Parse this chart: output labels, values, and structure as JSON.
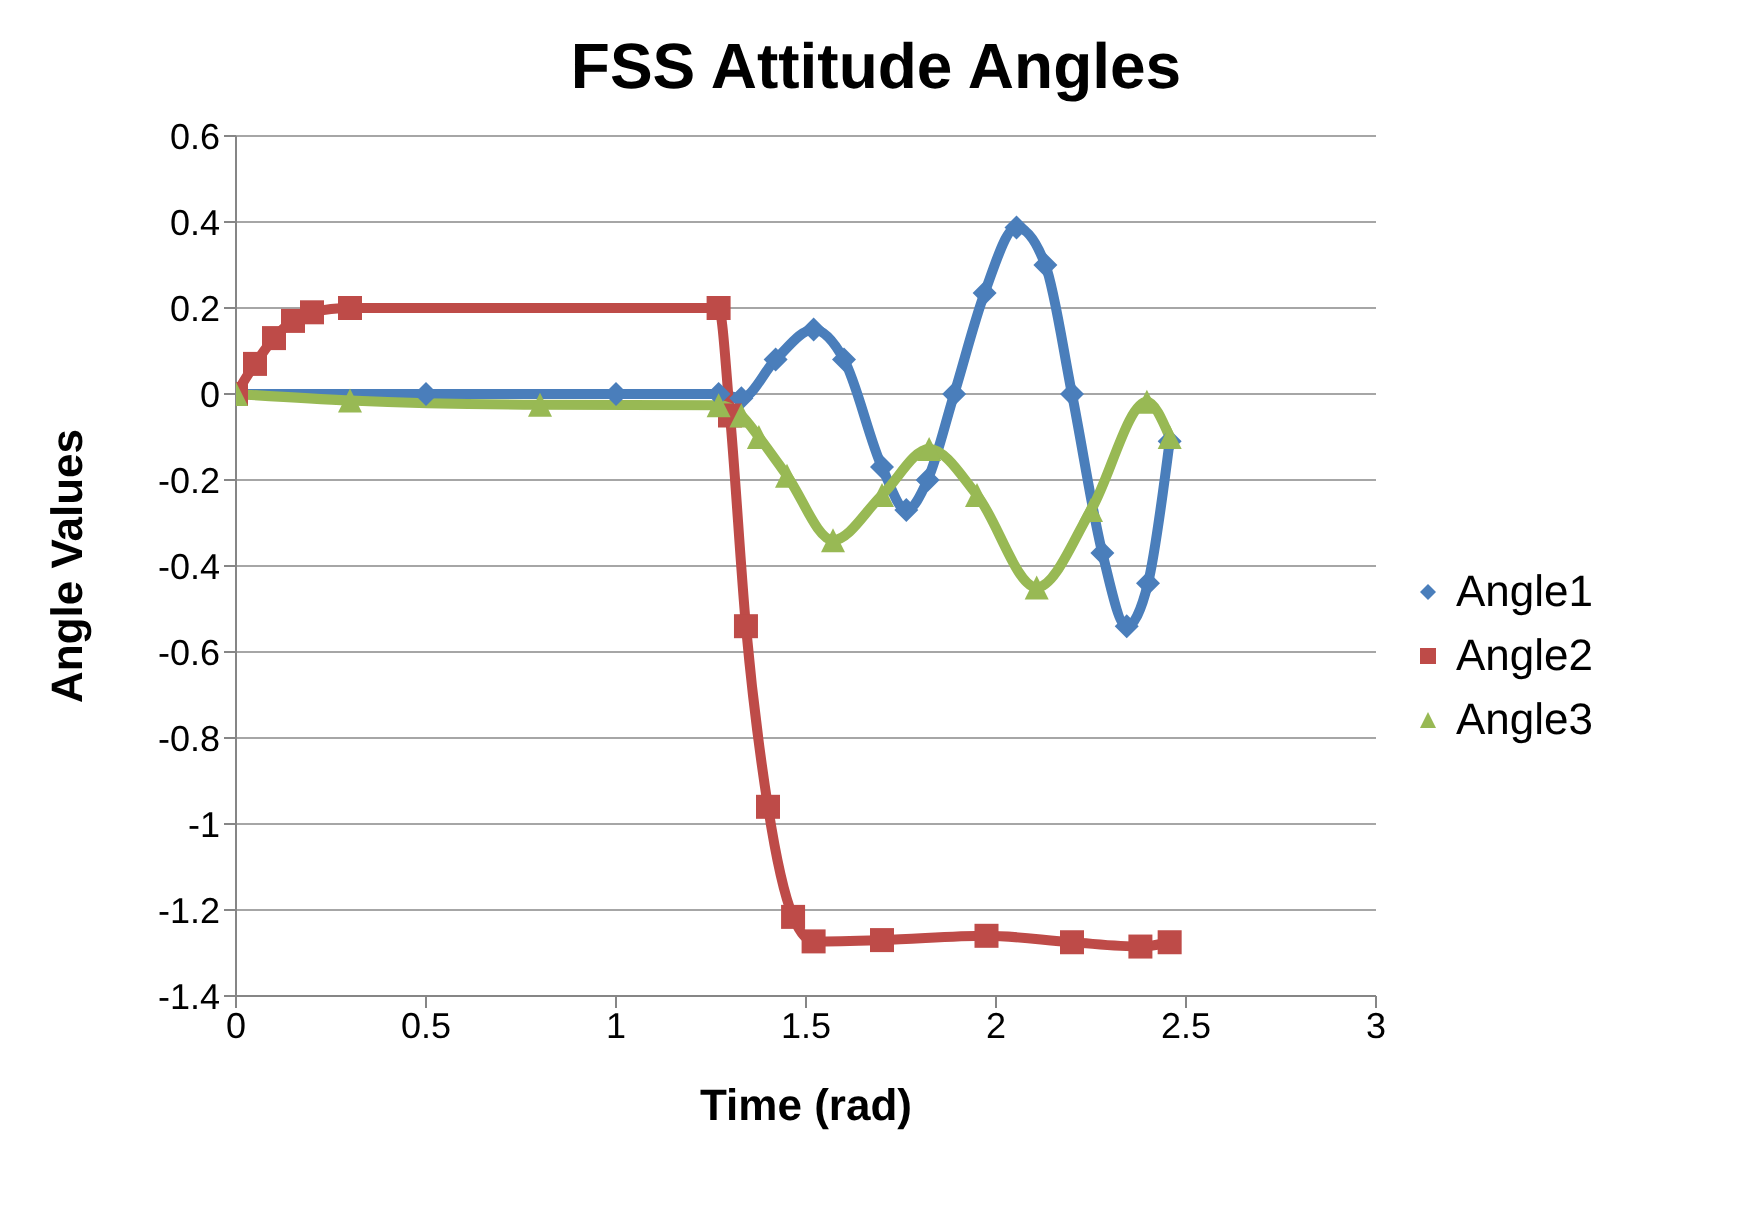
{
  "chart_data": {
    "type": "line",
    "title": "FSS Attitude Angles",
    "xlabel": "Time (rad)",
    "ylabel": "Angle Values",
    "xlim": [
      0,
      3
    ],
    "xticks": [
      0,
      0.5,
      1,
      1.5,
      2,
      2.5,
      3
    ],
    "ylim": [
      -1.4,
      0.6
    ],
    "yticks": [
      -1.4,
      -1.2,
      -1,
      -0.8,
      -0.6,
      -0.4,
      -0.2,
      0,
      0.2,
      0.4,
      0.6
    ],
    "grid": "y",
    "legend": "right",
    "series": [
      {
        "name": "Angle1",
        "color": "#4a7ebb",
        "marker": "diamond",
        "x": [
          0,
          0.5,
          1,
          1.27,
          1.33,
          1.42,
          1.52,
          1.6,
          1.7,
          1.764,
          1.82,
          1.89,
          1.97,
          2.054,
          2.13,
          2.2,
          2.28,
          2.344,
          2.4,
          2.457
        ],
        "values": [
          0,
          0,
          0,
          0,
          -0.01,
          0.08,
          0.15,
          0.08,
          -0.17,
          -0.27,
          -0.2,
          0,
          0.235,
          0.387,
          0.3,
          0,
          -0.37,
          -0.54,
          -0.44,
          -0.11
        ]
      },
      {
        "name": "Angle2",
        "color": "#be4b48",
        "marker": "square",
        "x": [
          0,
          0.05,
          0.1,
          0.15,
          0.2,
          0.3,
          1.27,
          1.3,
          1.342,
          1.4,
          1.466,
          1.52,
          1.7,
          1.975,
          2.2,
          2.38,
          2.457
        ],
        "values": [
          0,
          0.07,
          0.13,
          0.17,
          0.19,
          0.2,
          0.2,
          -0.05,
          -0.54,
          -0.96,
          -1.216,
          -1.273,
          -1.27,
          -1.26,
          -1.275,
          -1.285,
          -1.275
        ]
      },
      {
        "name": "Angle3",
        "color": "#98b954",
        "marker": "triangle",
        "x": [
          0,
          0.3,
          0.8,
          1.27,
          1.33,
          1.376,
          1.45,
          1.571,
          1.7,
          1.824,
          1.95,
          2.107,
          2.25,
          2.397,
          2.457
        ],
        "values": [
          0,
          -0.015,
          -0.025,
          -0.026,
          -0.05,
          -0.1,
          -0.19,
          -0.34,
          -0.235,
          -0.128,
          -0.235,
          -0.45,
          -0.27,
          -0.018,
          -0.1
        ]
      }
    ]
  }
}
